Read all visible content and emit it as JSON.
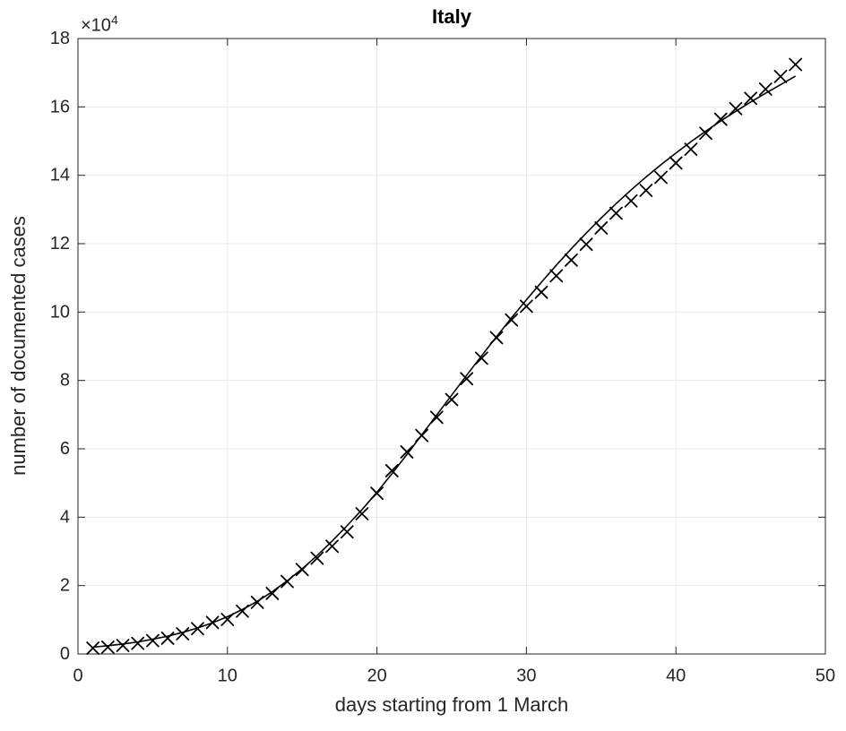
{
  "chart_data": {
    "type": "scatter",
    "title": "Italy",
    "xlabel": "days starting from 1 March",
    "ylabel": "number of documented cases",
    "y_exponent_base": "×10",
    "y_exponent_power": "4",
    "y_unit_multiplier": 10000,
    "xlim": [
      0,
      50
    ],
    "ylim": [
      0,
      18
    ],
    "xticks": [
      0,
      10,
      20,
      30,
      40,
      50
    ],
    "yticks": [
      0,
      2,
      4,
      6,
      8,
      10,
      12,
      14,
      16,
      18
    ],
    "grid": true,
    "legend_position": "none",
    "x": [
      1,
      2,
      3,
      4,
      5,
      6,
      7,
      8,
      9,
      10,
      11,
      12,
      13,
      14,
      15,
      16,
      17,
      18,
      19,
      20,
      21,
      22,
      23,
      24,
      25,
      26,
      27,
      28,
      29,
      30,
      31,
      32,
      33,
      34,
      35,
      36,
      37,
      38,
      39,
      40,
      41,
      42,
      43,
      44,
      45,
      46,
      47,
      48
    ],
    "series": [
      {
        "name": "documented cases (data points, ×10^4)",
        "type": "scatter",
        "marker": "x",
        "color": "#000000",
        "values": [
          0.17,
          0.2,
          0.25,
          0.31,
          0.39,
          0.46,
          0.59,
          0.74,
          0.92,
          1.01,
          1.25,
          1.51,
          1.77,
          2.12,
          2.47,
          2.8,
          3.15,
          3.57,
          4.1,
          4.7,
          5.36,
          5.91,
          6.39,
          6.92,
          7.44,
          8.05,
          8.65,
          9.25,
          9.77,
          10.17,
          10.58,
          11.06,
          11.52,
          11.98,
          12.46,
          12.89,
          13.25,
          13.56,
          13.94,
          14.36,
          14.76,
          15.23,
          15.64,
          15.95,
          16.25,
          16.52,
          16.89,
          17.24
        ]
      },
      {
        "name": "fitted model curve (×10^4)",
        "type": "line",
        "marker": "none",
        "color": "#000000",
        "values": [
          0.2,
          0.24,
          0.29,
          0.35,
          0.43,
          0.52,
          0.63,
          0.76,
          0.91,
          1.09,
          1.3,
          1.54,
          1.82,
          2.14,
          2.49,
          2.88,
          3.3,
          3.75,
          4.22,
          4.73,
          5.27,
          5.83,
          6.41,
          6.99,
          7.57,
          8.15,
          8.72,
          9.28,
          9.83,
          10.36,
          10.87,
          11.37,
          11.85,
          12.31,
          12.75,
          13.17,
          13.57,
          13.95,
          14.31,
          14.65,
          14.98,
          15.29,
          15.59,
          15.87,
          16.14,
          16.4,
          16.65,
          16.9
        ]
      }
    ],
    "colors": {
      "axis": "#262626",
      "grid": "#eaeaea",
      "background": "#ffffff",
      "data": "#000000"
    }
  }
}
